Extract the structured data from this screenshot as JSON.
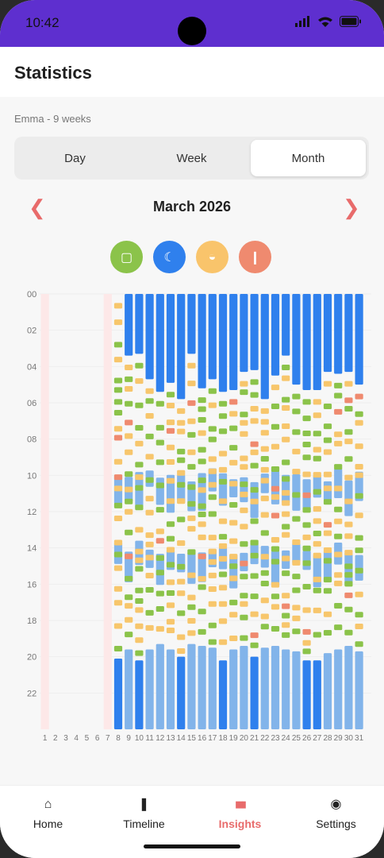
{
  "status_bar": {
    "time": "10:42"
  },
  "header": {
    "title": "Statistics"
  },
  "subtitle": "Emma - 9 weeks",
  "segments": {
    "day": "Day",
    "week": "Week",
    "month": "Month",
    "selected": "Month"
  },
  "month_nav": {
    "prev": "❮",
    "label": "March 2026",
    "next": "❯"
  },
  "legend": [
    {
      "name": "diaper",
      "color": "#8bc34a",
      "glyph": "▢"
    },
    {
      "name": "sleep",
      "color": "#2f80ed",
      "glyph": "☾"
    },
    {
      "name": "feeding",
      "color": "#f9c46b",
      "glyph": "◒"
    },
    {
      "name": "bottle",
      "color": "#ef8a6f",
      "glyph": "❙"
    }
  ],
  "colors": {
    "night_sleep": "#2f80ed",
    "day_sleep": "#82b4ea",
    "feed": "#f7c66c",
    "diaper": "#8bc34a",
    "bottle": "#ef8a6f",
    "empty_day": "#fde8e8"
  },
  "chart_data": {
    "type": "table",
    "y_ticks": [
      "00",
      "02",
      "04",
      "06",
      "08",
      "10",
      "12",
      "14",
      "16",
      "18",
      "20",
      "22"
    ],
    "days": [
      "1",
      "2",
      "3",
      "4",
      "5",
      "6",
      "7",
      "8",
      "9",
      "10",
      "11",
      "12",
      "13",
      "14",
      "15",
      "16",
      "17",
      "18",
      "19",
      "20",
      "21",
      "22",
      "23",
      "24",
      "25",
      "26",
      "27",
      "28",
      "29",
      "30",
      "31"
    ],
    "empty_days": [
      1,
      2,
      3,
      4,
      5,
      6,
      7
    ],
    "night_start_hour": 20,
    "night_end_hours": [
      0,
      0,
      0,
      0,
      0,
      0,
      0,
      0,
      3.4,
      3.3,
      4.7,
      5.4,
      4.9,
      5.8,
      3.3,
      5.2,
      4.7,
      5.4,
      5.3,
      4.3,
      4.2,
      5.8,
      4.5,
      3.4,
      5.0,
      5.3,
      5.3,
      4.3,
      4.4,
      4.3,
      5.0
    ],
    "evening_start_hours": [
      0,
      0,
      0,
      0,
      0,
      0,
      0,
      20.1,
      19.6,
      20.2,
      19.6,
      19.3,
      19.6,
      20.0,
      19.3,
      19.4,
      19.5,
      20.2,
      19.6,
      19.4,
      20.0,
      19.5,
      19.4,
      19.6,
      19.7,
      20.2,
      20.2,
      19.8,
      19.6,
      19.4,
      19.7
    ]
  },
  "tabs": [
    {
      "label": "Home",
      "icon": "⌂"
    },
    {
      "label": "Timeline",
      "icon": "❚"
    },
    {
      "label": "Insights",
      "icon": "▮▮▮"
    },
    {
      "label": "Settings",
      "icon": "◉"
    }
  ]
}
